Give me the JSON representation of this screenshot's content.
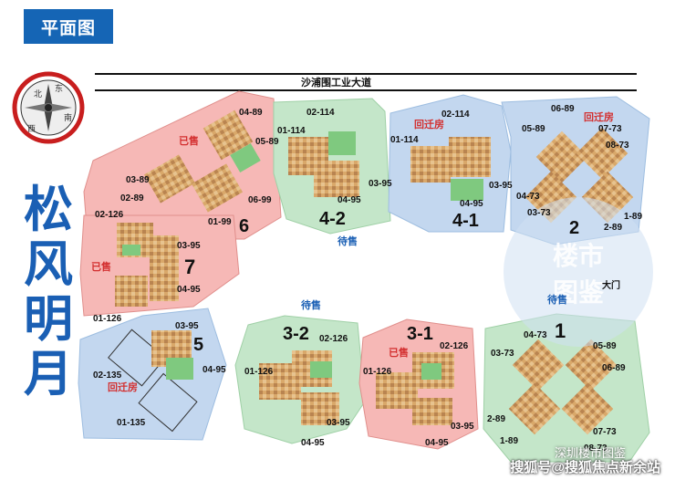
{
  "header": {
    "title": "平面图"
  },
  "road": {
    "name": "沙浦围工业大道"
  },
  "compass": {
    "north": "北",
    "east": "东",
    "south": "南",
    "west": "西"
  },
  "project_name": "松风明月",
  "status": {
    "sold": "已售",
    "for_sale": "待售",
    "resettlement": "回迁房"
  },
  "zones": {
    "z6": {
      "number": "6",
      "units": [
        "04-89",
        "05-89",
        "03-89",
        "02-89",
        "01-99",
        "06-99"
      ]
    },
    "z42": {
      "number": "4-2",
      "units": [
        "02-114",
        "01-114",
        "03-95",
        "04-95"
      ]
    },
    "z41": {
      "number": "4-1",
      "units": [
        "02-114",
        "01-114",
        "03-95",
        "04-95"
      ]
    },
    "z2": {
      "number": "2",
      "units": [
        "06-89",
        "05-89",
        "07-73",
        "08-73",
        "04-73",
        "03-73",
        "1-89",
        "2-89"
      ]
    },
    "z7": {
      "number": "7",
      "units": [
        "02-126",
        "03-95",
        "04-95",
        "01-126"
      ]
    },
    "z5": {
      "number": "5",
      "units": [
        "03-95",
        "04-95",
        "02-135",
        "01-135"
      ]
    },
    "z32": {
      "number": "3-2",
      "units": [
        "02-126",
        "01-126",
        "03-95",
        "04-95"
      ]
    },
    "z31": {
      "number": "3-1",
      "units": [
        "02-126",
        "01-126",
        "03-95",
        "04-95"
      ]
    },
    "z1": {
      "number": "1",
      "units": [
        "04-73",
        "03-73",
        "05-89",
        "06-89",
        "2-89",
        "07-73",
        "1-89",
        "08-73"
      ]
    }
  },
  "gate": "大门",
  "watermark": {
    "top": "楼市",
    "bottom": "图鉴",
    "social": "深圳楼市图鉴",
    "footer": "搜狐号@搜狐焦点新余站"
  },
  "colors": {
    "pink": "#f6b8b6",
    "blue": "#c3d7ef",
    "green": "#c4e6c9",
    "accent": "#1a5fb4",
    "sold": "#d32f2f"
  }
}
